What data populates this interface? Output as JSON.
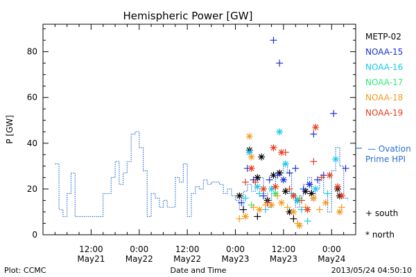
{
  "chart_data": {
    "type": "scatter",
    "title": "Hemispheric Power [GW]",
    "ylabel": "P [GW]",
    "xlabel": "Date and Time",
    "ylim": [
      0,
      92
    ],
    "xlim_hours_label": "hours since May21 00:00",
    "y_ticks": [
      "0",
      "20",
      "40",
      "60",
      "80"
    ],
    "x_ticks": [
      {
        "hour": 12,
        "time": "12:00",
        "date": "May21"
      },
      {
        "hour": 24,
        "time": "0:00",
        "date": "May22"
      },
      {
        "hour": 36,
        "time": "12:00",
        "date": "May22"
      },
      {
        "hour": 48,
        "time": "0:00",
        "date": "May23"
      },
      {
        "hour": 60,
        "time": "12:00",
        "date": "May23"
      },
      {
        "hour": 72,
        "time": "0:00",
        "date": "May24"
      }
    ],
    "legend": {
      "satellites": [
        {
          "name": "METP-02",
          "color": "#000000"
        },
        {
          "name": "NOAA-15",
          "color": "#1a2fd0"
        },
        {
          "name": "NOAA-16",
          "color": "#19c8ee"
        },
        {
          "name": "NOAA-17",
          "color": "#2ee87c"
        },
        {
          "name": "NOAA-18",
          "color": "#f39a1e"
        },
        {
          "name": "NOAA-19",
          "color": "#e53a1c"
        }
      ],
      "ovation_line1": "— Ovation",
      "ovation_line2": "Prime HPI",
      "ovation_color": "#2a6fd0",
      "south_label": "+ south",
      "north_label": "* north"
    },
    "ovation_series": [
      [
        3,
        31
      ],
      [
        4,
        31
      ],
      [
        4,
        11
      ],
      [
        5,
        11
      ],
      [
        5,
        8
      ],
      [
        6,
        8
      ],
      [
        6,
        18
      ],
      [
        7,
        18
      ],
      [
        7,
        27
      ],
      [
        8,
        27
      ],
      [
        8,
        8
      ],
      [
        15,
        8
      ],
      [
        15,
        18
      ],
      [
        17,
        18
      ],
      [
        17,
        25
      ],
      [
        18,
        25
      ],
      [
        18,
        32
      ],
      [
        19,
        32
      ],
      [
        19,
        22
      ],
      [
        20,
        22
      ],
      [
        20,
        27
      ],
      [
        21,
        27
      ],
      [
        21,
        32
      ],
      [
        22,
        32
      ],
      [
        22,
        44
      ],
      [
        23,
        44
      ],
      [
        23,
        45
      ],
      [
        24,
        45
      ],
      [
        24,
        38
      ],
      [
        25,
        38
      ],
      [
        25,
        28
      ],
      [
        26,
        28
      ],
      [
        26,
        8
      ],
      [
        27,
        8
      ],
      [
        27,
        18
      ],
      [
        28,
        18
      ],
      [
        28,
        16
      ],
      [
        29,
        16
      ],
      [
        29,
        12
      ],
      [
        30,
        12
      ],
      [
        30,
        15
      ],
      [
        31,
        15
      ],
      [
        31,
        12
      ],
      [
        33,
        12
      ],
      [
        33,
        25
      ],
      [
        34,
        25
      ],
      [
        34,
        23
      ],
      [
        35,
        23
      ],
      [
        35,
        31
      ],
      [
        36,
        31
      ],
      [
        36,
        8
      ],
      [
        37,
        8
      ],
      [
        37,
        18
      ],
      [
        38,
        18
      ],
      [
        38,
        21
      ],
      [
        39,
        21
      ],
      [
        39,
        20
      ],
      [
        40,
        20
      ],
      [
        40,
        24
      ],
      [
        41,
        24
      ],
      [
        41,
        22
      ],
      [
        42,
        22
      ],
      [
        42,
        23
      ],
      [
        44,
        23
      ],
      [
        44,
        22
      ],
      [
        45,
        22
      ],
      [
        45,
        18
      ],
      [
        46,
        18
      ],
      [
        46,
        20
      ],
      [
        47,
        20
      ],
      [
        47,
        17
      ],
      [
        48,
        17
      ],
      [
        48,
        15
      ],
      [
        49,
        15
      ],
      [
        49,
        11
      ],
      [
        50,
        11
      ],
      [
        50,
        19
      ],
      [
        51,
        19
      ],
      [
        51,
        22
      ],
      [
        52,
        22
      ],
      [
        52,
        19
      ],
      [
        53,
        19
      ],
      [
        53,
        24
      ],
      [
        54,
        24
      ],
      [
        54,
        25
      ],
      [
        55,
        25
      ],
      [
        55,
        18
      ],
      [
        56,
        18
      ],
      [
        56,
        12
      ],
      [
        57,
        12
      ],
      [
        57,
        18
      ],
      [
        58,
        18
      ],
      [
        58,
        26
      ],
      [
        59,
        26
      ],
      [
        59,
        27
      ],
      [
        60,
        27
      ],
      [
        60,
        31
      ],
      [
        61,
        31
      ],
      [
        61,
        27
      ],
      [
        62,
        27
      ],
      [
        62,
        18
      ],
      [
        63,
        18
      ],
      [
        63,
        12
      ],
      [
        64,
        12
      ],
      [
        64,
        17
      ],
      [
        65,
        17
      ],
      [
        65,
        22
      ],
      [
        66,
        22
      ],
      [
        66,
        25
      ],
      [
        67,
        25
      ],
      [
        67,
        15
      ],
      [
        68,
        15
      ],
      [
        68,
        20
      ],
      [
        69,
        20
      ],
      [
        69,
        25
      ],
      [
        70,
        25
      ],
      [
        70,
        18
      ],
      [
        71,
        18
      ],
      [
        71,
        10
      ],
      [
        72,
        10
      ],
      [
        72,
        28
      ],
      [
        73,
        28
      ],
      [
        73,
        38
      ],
      [
        74,
        38
      ],
      [
        74,
        30
      ],
      [
        75,
        30
      ],
      [
        75,
        16
      ],
      [
        76,
        16
      ],
      [
        76,
        15
      ]
    ],
    "observations": [
      {
        "sat": "METP-02",
        "hem": "north",
        "x": 49.0,
        "y": 17
      },
      {
        "sat": "METP-02",
        "hem": "south",
        "x": 50.0,
        "y": 11
      },
      {
        "sat": "METP-02",
        "hem": "north",
        "x": 51.5,
        "y": 37
      },
      {
        "sat": "METP-02",
        "hem": "north",
        "x": 53.5,
        "y": 25
      },
      {
        "sat": "METP-02",
        "hem": "north",
        "x": 54.5,
        "y": 34
      },
      {
        "sat": "METP-02",
        "hem": "south",
        "x": 53.5,
        "y": 8
      },
      {
        "sat": "METP-02",
        "hem": "north",
        "x": 56.0,
        "y": 15
      },
      {
        "sat": "METP-02",
        "hem": "north",
        "x": 57.5,
        "y": 26
      },
      {
        "sat": "METP-02",
        "hem": "north",
        "x": 59.0,
        "y": 27
      },
      {
        "sat": "METP-02",
        "hem": "north",
        "x": 60.5,
        "y": 19
      },
      {
        "sat": "METP-02",
        "hem": "north",
        "x": 61.5,
        "y": 10
      },
      {
        "sat": "METP-02",
        "hem": "south",
        "x": 62.5,
        "y": 7
      },
      {
        "sat": "METP-02",
        "hem": "north",
        "x": 63.5,
        "y": 15
      },
      {
        "sat": "METP-02",
        "hem": "north",
        "x": 65.5,
        "y": 19
      },
      {
        "sat": "METP-02",
        "hem": "north",
        "x": 67.0,
        "y": 18
      },
      {
        "sat": "METP-02",
        "hem": "north",
        "x": 73.5,
        "y": 20
      },
      {
        "sat": "METP-02",
        "hem": "north",
        "x": 74.0,
        "y": 17
      },
      {
        "sat": "NOAA-15",
        "hem": "south",
        "x": 57.5,
        "y": 85
      },
      {
        "sat": "NOAA-15",
        "hem": "south",
        "x": 59.0,
        "y": 75
      },
      {
        "sat": "NOAA-15",
        "hem": "south",
        "x": 72.5,
        "y": 53
      },
      {
        "sat": "NOAA-15",
        "hem": "south",
        "x": 67.5,
        "y": 44
      },
      {
        "sat": "NOAA-15",
        "hem": "south",
        "x": 51.0,
        "y": 29
      },
      {
        "sat": "NOAA-15",
        "hem": "south",
        "x": 52.5,
        "y": 24
      },
      {
        "sat": "NOAA-15",
        "hem": "south",
        "x": 56.5,
        "y": 24
      },
      {
        "sat": "NOAA-15",
        "hem": "south",
        "x": 58.5,
        "y": 26
      },
      {
        "sat": "NOAA-15",
        "hem": "south",
        "x": 61.5,
        "y": 27
      },
      {
        "sat": "NOAA-15",
        "hem": "south",
        "x": 63.0,
        "y": 29
      },
      {
        "sat": "NOAA-15",
        "hem": "south",
        "x": 65.0,
        "y": 20
      },
      {
        "sat": "NOAA-15",
        "hem": "south",
        "x": 68.5,
        "y": 24
      },
      {
        "sat": "NOAA-15",
        "hem": "south",
        "x": 70.0,
        "y": 26
      },
      {
        "sat": "NOAA-15",
        "hem": "south",
        "x": 75.5,
        "y": 29
      },
      {
        "sat": "NOAA-15",
        "hem": "south",
        "x": 49.5,
        "y": 14
      },
      {
        "sat": "NOAA-15",
        "hem": "south",
        "x": 55.0,
        "y": 17
      },
      {
        "sat": "NOAA-15",
        "hem": "north",
        "x": 60.0,
        "y": 24
      },
      {
        "sat": "NOAA-15",
        "hem": "north",
        "x": 66.5,
        "y": 22
      },
      {
        "sat": "NOAA-16",
        "hem": "north",
        "x": 59.0,
        "y": 45
      },
      {
        "sat": "NOAA-16",
        "hem": "north",
        "x": 51.5,
        "y": 36
      },
      {
        "sat": "NOAA-16",
        "hem": "north",
        "x": 53.5,
        "y": 21
      },
      {
        "sat": "NOAA-16",
        "hem": "south",
        "x": 50.5,
        "y": 16
      },
      {
        "sat": "NOAA-16",
        "hem": "south",
        "x": 54.0,
        "y": 18
      },
      {
        "sat": "NOAA-16",
        "hem": "south",
        "x": 55.5,
        "y": 11
      },
      {
        "sat": "NOAA-16",
        "hem": "north",
        "x": 57.0,
        "y": 20
      },
      {
        "sat": "NOAA-16",
        "hem": "north",
        "x": 60.5,
        "y": 31
      },
      {
        "sat": "NOAA-16",
        "hem": "south",
        "x": 62.0,
        "y": 18
      },
      {
        "sat": "NOAA-16",
        "hem": "north",
        "x": 63.5,
        "y": 15
      },
      {
        "sat": "NOAA-16",
        "hem": "south",
        "x": 64.5,
        "y": 11
      },
      {
        "sat": "NOAA-16",
        "hem": "south",
        "x": 66.0,
        "y": 6
      },
      {
        "sat": "NOAA-16",
        "hem": "north",
        "x": 68.0,
        "y": 20
      },
      {
        "sat": "NOAA-16",
        "hem": "north",
        "x": 73.0,
        "y": 33
      },
      {
        "sat": "NOAA-16",
        "hem": "south",
        "x": 71.0,
        "y": 18
      },
      {
        "sat": "NOAA-17",
        "hem": "south",
        "x": 52.0,
        "y": 13
      },
      {
        "sat": "NOAA-17",
        "hem": "north",
        "x": 58.0,
        "y": 18
      },
      {
        "sat": "NOAA-17",
        "hem": "south",
        "x": 64.0,
        "y": 16
      },
      {
        "sat": "NOAA-18",
        "hem": "north",
        "x": 51.5,
        "y": 43
      },
      {
        "sat": "NOAA-18",
        "hem": "north",
        "x": 52.0,
        "y": 34
      },
      {
        "sat": "NOAA-18",
        "hem": "south",
        "x": 49.0,
        "y": 7
      },
      {
        "sat": "NOAA-18",
        "hem": "north",
        "x": 50.5,
        "y": 8
      },
      {
        "sat": "NOAA-18",
        "hem": "south",
        "x": 52.5,
        "y": 12
      },
      {
        "sat": "NOAA-18",
        "hem": "north",
        "x": 54.0,
        "y": 11
      },
      {
        "sat": "NOAA-18",
        "hem": "south",
        "x": 55.5,
        "y": 13
      },
      {
        "sat": "NOAA-18",
        "hem": "north",
        "x": 57.0,
        "y": 13
      },
      {
        "sat": "NOAA-18",
        "hem": "south",
        "x": 58.5,
        "y": 17
      },
      {
        "sat": "NOAA-18",
        "hem": "north",
        "x": 59.5,
        "y": 14
      },
      {
        "sat": "NOAA-18",
        "hem": "south",
        "x": 61.0,
        "y": 12
      },
      {
        "sat": "NOAA-18",
        "hem": "north",
        "x": 62.5,
        "y": 10
      },
      {
        "sat": "NOAA-18",
        "hem": "south",
        "x": 63.5,
        "y": 5
      },
      {
        "sat": "NOAA-18",
        "hem": "north",
        "x": 64.0,
        "y": 4
      },
      {
        "sat": "NOAA-18",
        "hem": "south",
        "x": 65.5,
        "y": 12
      },
      {
        "sat": "NOAA-18",
        "hem": "north",
        "x": 67.5,
        "y": 16
      },
      {
        "sat": "NOAA-18",
        "hem": "south",
        "x": 69.0,
        "y": 11
      },
      {
        "sat": "NOAA-18",
        "hem": "north",
        "x": 70.5,
        "y": 14
      },
      {
        "sat": "NOAA-18",
        "hem": "south",
        "x": 74.5,
        "y": 12
      },
      {
        "sat": "NOAA-18",
        "hem": "north",
        "x": 74.0,
        "y": 10
      },
      {
        "sat": "NOAA-19",
        "hem": "north",
        "x": 57.5,
        "y": 38
      },
      {
        "sat": "NOAA-19",
        "hem": "north",
        "x": 59.5,
        "y": 36
      },
      {
        "sat": "NOAA-19",
        "hem": "south",
        "x": 60.5,
        "y": 36
      },
      {
        "sat": "NOAA-19",
        "hem": "north",
        "x": 68.0,
        "y": 47
      },
      {
        "sat": "NOAA-19",
        "hem": "south",
        "x": 67.5,
        "y": 32
      },
      {
        "sat": "NOAA-19",
        "hem": "north",
        "x": 73.5,
        "y": 21
      },
      {
        "sat": "NOAA-19",
        "hem": "south",
        "x": 50.5,
        "y": 23
      },
      {
        "sat": "NOAA-19",
        "hem": "north",
        "x": 52.0,
        "y": 29
      },
      {
        "sat": "NOAA-19",
        "hem": "south",
        "x": 53.0,
        "y": 23
      },
      {
        "sat": "NOAA-19",
        "hem": "north",
        "x": 55.0,
        "y": 20
      },
      {
        "sat": "NOAA-19",
        "hem": "south",
        "x": 56.0,
        "y": 14
      },
      {
        "sat": "NOAA-19",
        "hem": "north",
        "x": 58.0,
        "y": 21
      },
      {
        "sat": "NOAA-19",
        "hem": "south",
        "x": 61.5,
        "y": 20
      },
      {
        "sat": "NOAA-19",
        "hem": "north",
        "x": 62.5,
        "y": 17
      },
      {
        "sat": "NOAA-19",
        "hem": "south",
        "x": 64.5,
        "y": 15
      },
      {
        "sat": "NOAA-19",
        "hem": "north",
        "x": 66.0,
        "y": 11
      },
      {
        "sat": "NOAA-19",
        "hem": "south",
        "x": 69.5,
        "y": 25
      },
      {
        "sat": "NOAA-19",
        "hem": "north",
        "x": 71.5,
        "y": 26
      },
      {
        "sat": "NOAA-19",
        "hem": "north",
        "x": 74.5,
        "y": 17
      }
    ]
  },
  "footer": {
    "plot_label": "Plot: CCMC",
    "timestamp": "2013/05/24 04:50:10"
  }
}
